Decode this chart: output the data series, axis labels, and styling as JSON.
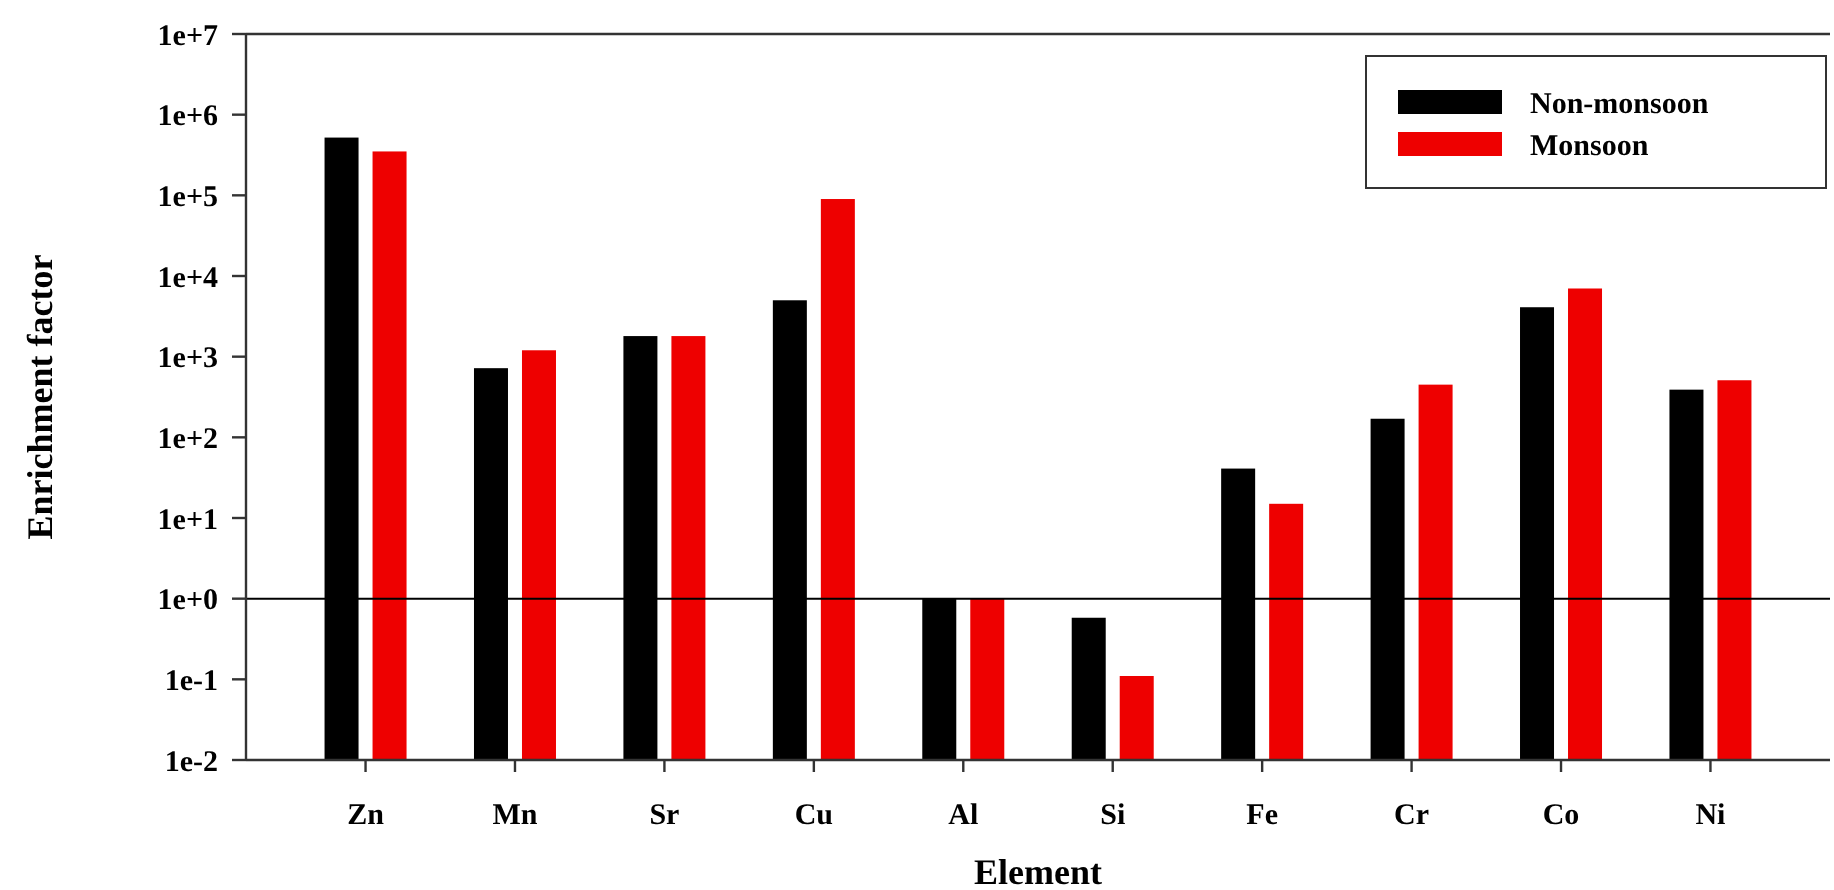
{
  "chart_data": {
    "type": "bar",
    "xlabel": "Element",
    "ylabel": "Enrichment factor",
    "categories": [
      "Zn",
      "Mn",
      "Sr",
      "Cu",
      "Al",
      "Si",
      "Fe",
      "Cr",
      "Co",
      "Ni"
    ],
    "series": [
      {
        "name": "Non-monsoon",
        "color": "#000000",
        "values": [
          520000,
          720,
          1800,
          5000,
          1.0,
          0.58,
          41,
          170,
          4100,
          390
        ]
      },
      {
        "name": "Monsoon",
        "color": "#ee0000",
        "values": [
          350000,
          1200,
          1800,
          90000,
          1.0,
          0.11,
          15,
          450,
          7000,
          510
        ]
      }
    ],
    "log": "y",
    "ylim": [
      0.01,
      10000000
    ],
    "yticks": [
      {
        "value": 0.01,
        "label": "1e-2"
      },
      {
        "value": 0.1,
        "label": "1e-1"
      },
      {
        "value": 1,
        "label": "1e+0"
      },
      {
        "value": 10,
        "label": "1e+1"
      },
      {
        "value": 100,
        "label": "1e+2"
      },
      {
        "value": 1000,
        "label": "1e+3"
      },
      {
        "value": 10000,
        "label": "1e+4"
      },
      {
        "value": 100000,
        "label": "1e+5"
      },
      {
        "value": 1000000,
        "label": "1e+6"
      },
      {
        "value": 10000000,
        "label": "1e+7"
      }
    ],
    "ref_lines": [
      {
        "axis": "y",
        "value": 1,
        "color": "#000000"
      }
    ],
    "legend": "top right",
    "grid": false
  }
}
